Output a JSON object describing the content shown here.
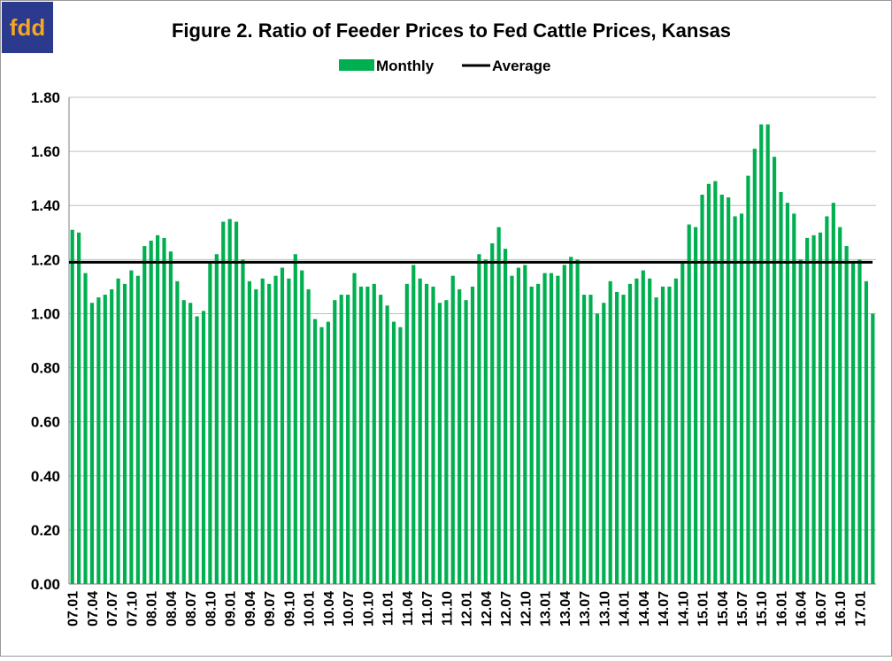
{
  "logo": "fdd",
  "chart_data": {
    "type": "bar",
    "title": "Figure 2. Ratio of Feeder Prices to Fed Cattle Prices, Kansas",
    "categories": [
      "07.01",
      null,
      null,
      "07.04",
      null,
      null,
      "07.07",
      null,
      null,
      "07.10",
      null,
      null,
      "08.01",
      null,
      null,
      "08.04",
      null,
      null,
      "08.07",
      null,
      null,
      "08.10",
      null,
      null,
      "09.01",
      null,
      null,
      "09.04",
      null,
      null,
      "09.07",
      null,
      null,
      "09.10",
      null,
      null,
      "10.01",
      null,
      null,
      "10.04",
      null,
      null,
      "10.07",
      null,
      null,
      "10.10",
      null,
      null,
      "11.01",
      null,
      null,
      "11.04",
      null,
      null,
      "11.07",
      null,
      null,
      "11.10",
      null,
      null,
      "12.01",
      null,
      null,
      "12.04",
      null,
      null,
      "12.07",
      null,
      null,
      "12.10",
      null,
      null,
      "13.01",
      null,
      null,
      "13.04",
      null,
      null,
      "13.07",
      null,
      null,
      "13.10",
      null,
      null,
      "14.01",
      null,
      null,
      "14.04",
      null,
      null,
      "14.07",
      null,
      null,
      "14.10",
      null,
      null,
      "15.01",
      null,
      null,
      "15.04",
      null,
      null,
      "15.07",
      null,
      null,
      "15.10",
      null,
      null,
      "16.01",
      null,
      null,
      "16.04",
      null,
      null,
      "16.07",
      null,
      null,
      "16.10",
      null,
      null,
      "17.01",
      null,
      null
    ],
    "series": [
      {
        "name": "Monthly",
        "color": "#00b050",
        "values": [
          1.31,
          1.3,
          1.15,
          1.04,
          1.06,
          1.07,
          1.09,
          1.13,
          1.11,
          1.16,
          1.14,
          1.25,
          1.27,
          1.29,
          1.28,
          1.23,
          1.12,
          1.05,
          1.04,
          0.99,
          1.01,
          1.19,
          1.22,
          1.34,
          1.35,
          1.34,
          1.2,
          1.12,
          1.09,
          1.13,
          1.11,
          1.14,
          1.17,
          1.13,
          1.22,
          1.16,
          1.09,
          0.98,
          0.95,
          0.97,
          1.05,
          1.07,
          1.07,
          1.15,
          1.1,
          1.1,
          1.11,
          1.07,
          1.03,
          0.97,
          0.95,
          1.11,
          1.18,
          1.13,
          1.11,
          1.1,
          1.04,
          1.05,
          1.14,
          1.09,
          1.05,
          1.1,
          1.22,
          1.2,
          1.26,
          1.32,
          1.24,
          1.14,
          1.17,
          1.18,
          1.1,
          1.11,
          1.15,
          1.15,
          1.14,
          1.18,
          1.21,
          1.2,
          1.07,
          1.07,
          1.0,
          1.04,
          1.12,
          1.08,
          1.07,
          1.11,
          1.13,
          1.16,
          1.13,
          1.06,
          1.1,
          1.1,
          1.13,
          1.19,
          1.33,
          1.32,
          1.44,
          1.48,
          1.49,
          1.44,
          1.43,
          1.36,
          1.37,
          1.51,
          1.61,
          1.7,
          1.7,
          1.58,
          1.45,
          1.41,
          1.37,
          1.2,
          1.28,
          1.29,
          1.3,
          1.36,
          1.41,
          1.32,
          1.25,
          1.19,
          1.2,
          1.12,
          1.0
        ]
      }
    ],
    "average": {
      "name": "Average",
      "color": "#000000",
      "value": 1.19
    },
    "ylim": [
      0,
      1.8
    ],
    "yticks": [
      {
        "value": 0,
        "label": "0.00"
      },
      {
        "value": 0.2,
        "label": "0.20"
      },
      {
        "value": 0.4,
        "label": "0.40"
      },
      {
        "value": 0.6,
        "label": "0.60"
      },
      {
        "value": 0.8,
        "label": "0.80"
      },
      {
        "value": 1,
        "label": "1.00"
      },
      {
        "value": 1.2,
        "label": "1.20"
      },
      {
        "value": 1.4,
        "label": "1.40"
      },
      {
        "value": 1.6,
        "label": "1.60"
      },
      {
        "value": 1.8,
        "label": "1.80"
      }
    ],
    "grid": true
  }
}
